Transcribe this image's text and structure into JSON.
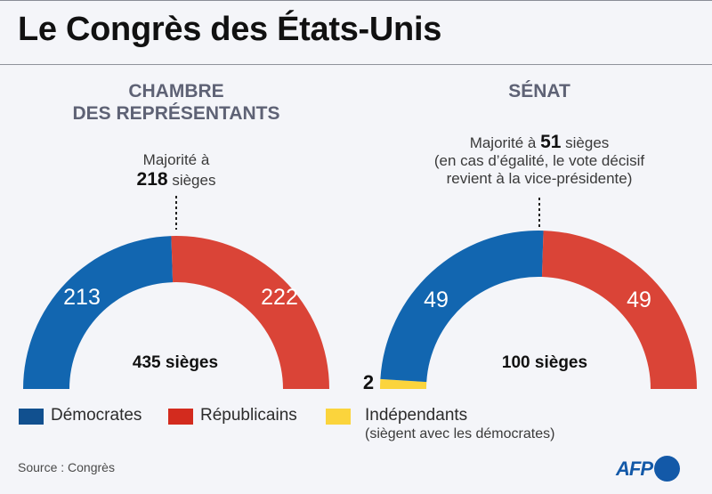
{
  "title": "Le Congrès des États-Unis",
  "colors": {
    "democrats": "#1266b0",
    "republicans": "#da4437",
    "independents": "#fbd43c",
    "legend_democrats": "#11508f",
    "legend_republicans": "#d32b1e",
    "legend_independents": "#fbd43c",
    "afp": "#1359a8"
  },
  "house": {
    "title_line1": "CHAMBRE",
    "title_line2": "DES REPRÉSENTANTS",
    "majority_prefix": "Majorité à",
    "majority_value": "218",
    "majority_suffix": "sièges",
    "total_label": "435 sièges",
    "democrats_label": "213",
    "republicans_label": "222"
  },
  "senate": {
    "title": "SÉNAT",
    "majority_prefix": "Majorité à",
    "majority_value": "51",
    "majority_suffix": "sièges",
    "note_line1": "(en cas d’égalité, le vote décisif",
    "note_line2": "revient à la vice-présidente)",
    "total_label": "100 sièges",
    "democrats_label": "49",
    "republicans_label": "49",
    "independents_label": "2"
  },
  "legend": {
    "democrats": "Démocrates",
    "republicans": "Républicains",
    "independents": "Indépendants",
    "independents_note": "(siègent avec les démocrates)"
  },
  "source": "Source : Congrès",
  "logo": "AFP",
  "chart_data": [
    {
      "type": "pie",
      "subtype": "half-donut (parliament arc)",
      "title": "CHAMBRE DES REPRÉSENTANTS",
      "total": 435,
      "majority": 218,
      "categories": [
        "Démocrates",
        "Républicains"
      ],
      "values": [
        213,
        222
      ],
      "center_label": "435 sièges"
    },
    {
      "type": "pie",
      "subtype": "half-donut (parliament arc)",
      "title": "SÉNAT",
      "total": 100,
      "majority": 51,
      "categories": [
        "Indépendants",
        "Démocrates",
        "Républicains"
      ],
      "values": [
        2,
        49,
        49
      ],
      "center_label": "100 sièges",
      "note": "En cas d’égalité, le vote décisif revient à la vice-présidente"
    }
  ]
}
